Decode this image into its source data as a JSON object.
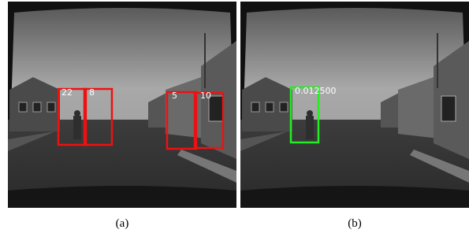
{
  "panels": [
    {
      "caption": "(a)",
      "boxes": [
        {
          "label": "22"
        },
        {
          "label": "8"
        },
        {
          "label": "5"
        },
        {
          "label": "10"
        }
      ]
    },
    {
      "caption": "(b)",
      "boxes": [
        {
          "label": "0.012500"
        }
      ]
    }
  ]
}
